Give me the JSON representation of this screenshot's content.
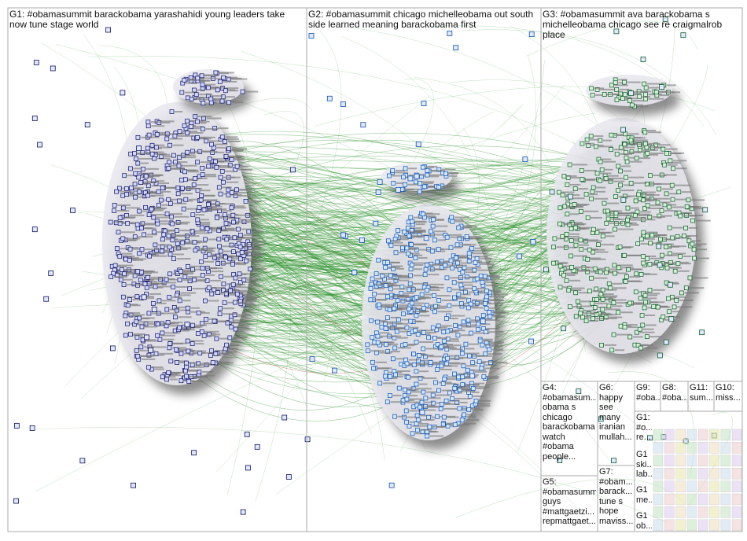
{
  "groups": [
    {
      "id": "g1",
      "lines": [
        "G1: #obamasummit barackobama yarashahidi young leaders take now tune stage world"
      ]
    },
    {
      "id": "g2",
      "lines": [
        "G2: #obamasummit chicago michelleobama out south side learned meaning barackobama first"
      ]
    },
    {
      "id": "g3",
      "lines": [
        "G3: #obamasummit ava barackobama s michelleobama chicago see re craigmalrob place"
      ]
    },
    {
      "id": "g4",
      "lines": [
        "G4:",
        "#obamasum...",
        "obama s",
        "chicago",
        "barackobama",
        "watch",
        "#obama",
        "people..."
      ]
    },
    {
      "id": "g5",
      "lines": [
        "G5:",
        "#obamasumm...",
        "guys",
        "#mattgaetzi...",
        "repmattgaet..."
      ]
    },
    {
      "id": "g6",
      "lines": [
        "G6:",
        "happy",
        "see",
        "many",
        "iranian",
        "mullah..."
      ]
    },
    {
      "id": "g7",
      "lines": [
        "G7:",
        "#obam...",
        "barack...",
        "tune s",
        "hope",
        "maviss..."
      ]
    },
    {
      "id": "g9",
      "lines": [
        "G9:",
        "#oba..."
      ]
    },
    {
      "id": "g8",
      "lines": [
        "G8:",
        "#oba..."
      ]
    },
    {
      "id": "g11",
      "lines": [
        "G11:",
        "sum..."
      ]
    },
    {
      "id": "g10",
      "lines": [
        "G10:",
        "miss..."
      ]
    },
    {
      "id": "g12",
      "lines": [
        "G1:",
        "#o...",
        "re..."
      ]
    },
    {
      "id": "g13",
      "lines": [
        "G1",
        "ski...",
        "lab..."
      ]
    },
    {
      "id": "g14",
      "lines": [
        "G1",
        "me..."
      ]
    },
    {
      "id": "g15",
      "lines": [
        "G1",
        "ob..."
      ]
    }
  ]
}
